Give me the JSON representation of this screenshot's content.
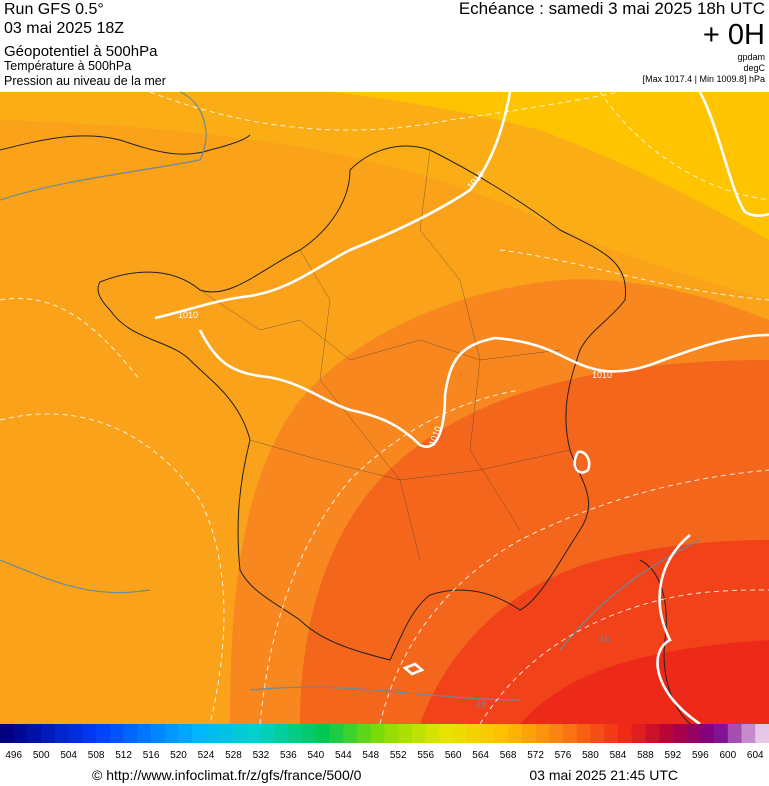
{
  "header": {
    "run": "Run GFS 0.5°",
    "date": "03 mai 2025 18Z",
    "fields": [
      "Géopotentiel à 500hPa",
      "Température à 500hPa",
      "Pression au niveau de la mer"
    ],
    "echeance": "Echéance : samedi 3 mai 2025 18h UTC",
    "lead": "+ 0H",
    "units": [
      "gpdam",
      "degC",
      "[Max 1017.4 | Min 1009.8] hPa"
    ]
  },
  "map": {
    "isobar_labels": [
      "1010",
      "1010",
      "1010",
      "1010"
    ],
    "isotherm_labels": [
      "-16",
      "-16"
    ]
  },
  "colorbar": {
    "labels": [
      496,
      500,
      504,
      508,
      512,
      516,
      520,
      524,
      528,
      532,
      536,
      540,
      544,
      548,
      552,
      556,
      560,
      564,
      568,
      572,
      576,
      580,
      584,
      588,
      592,
      596,
      600,
      604
    ]
  },
  "footer": {
    "source": "© http://www.infoclimat.fr/z/gfs/france/500/0",
    "issued": "03 mai 2025 21:45 UTC"
  }
}
